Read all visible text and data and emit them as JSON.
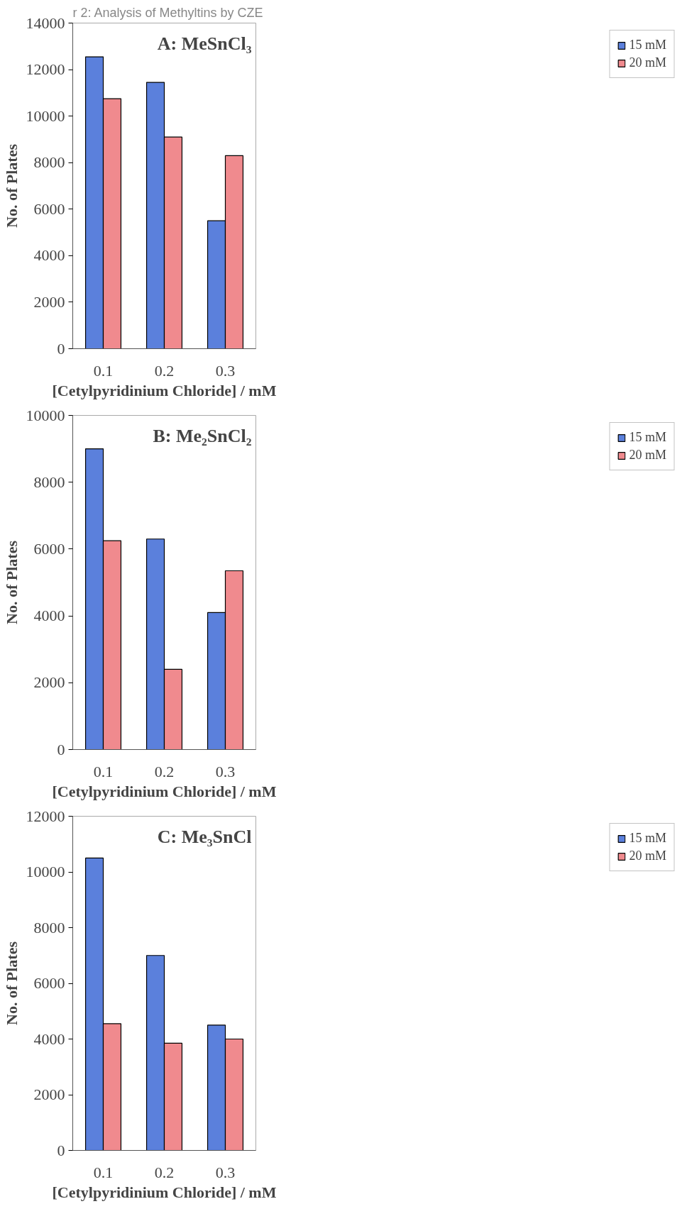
{
  "chart_data": [
    {
      "type": "bar",
      "title": "A: MeSnCl₃",
      "xlabel": "[Cetylpyridinium Chloride] / mM",
      "ylabel": "No. of Plates",
      "categories": [
        "0.1",
        "0.2",
        "0.3"
      ],
      "series": [
        {
          "name": "15 mM",
          "color": "#5b80dc",
          "values": [
            12550,
            11450,
            5500
          ]
        },
        {
          "name": "20 mM",
          "color": "#f08a8e",
          "values": [
            10750,
            9100,
            8300
          ]
        }
      ],
      "ylim": [
        0,
        14000
      ],
      "yticks": [
        0,
        2000,
        4000,
        6000,
        8000,
        10000,
        12000,
        14000
      ],
      "legend": "right",
      "grid": false,
      "annotations": [
        "r 2: Analysis of Methyltins by CZE"
      ]
    },
    {
      "type": "bar",
      "title": "B: Me₂SnCl₂",
      "xlabel": "[Cetylpyridinium Chloride] / mM",
      "ylabel": "No. of Plates",
      "categories": [
        "0.1",
        "0.2",
        "0.3"
      ],
      "series": [
        {
          "name": "15 mM",
          "color": "#5b80dc",
          "values": [
            9000,
            6300,
            4100
          ]
        },
        {
          "name": "20 mM",
          "color": "#f08a8e",
          "values": [
            6250,
            2400,
            5350
          ]
        }
      ],
      "ylim": [
        0,
        10000
      ],
      "yticks": [
        0,
        2000,
        4000,
        6000,
        8000,
        10000
      ],
      "legend": "right",
      "grid": false
    },
    {
      "type": "bar",
      "title": "C: Me₃SnCl",
      "xlabel": "[Cetylpyridinium Chloride] / mM",
      "ylabel": "No. of Plates",
      "categories": [
        "0.1",
        "0.2",
        "0.3"
      ],
      "series": [
        {
          "name": "15 mM",
          "color": "#5b80dc",
          "values": [
            10500,
            7000,
            4500
          ]
        },
        {
          "name": "20 mM",
          "color": "#f08a8e",
          "values": [
            4550,
            3850,
            4000
          ]
        }
      ],
      "ylim": [
        0,
        12000
      ],
      "yticks": [
        0,
        2000,
        4000,
        6000,
        8000,
        10000,
        12000
      ],
      "legend": "right",
      "grid": false
    }
  ]
}
